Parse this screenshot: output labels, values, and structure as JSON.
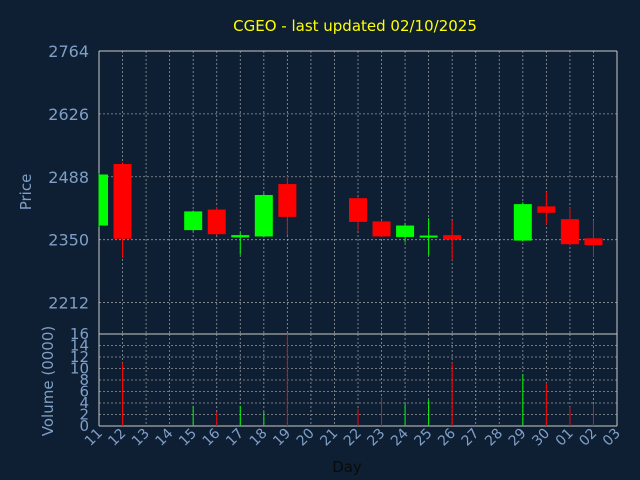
{
  "title": "CGEO - last updated 02/10/2025",
  "colors": {
    "background": "#0f1f33",
    "text": "#7f9fc7",
    "title": "#ffff00",
    "grid": "#c8c8c8",
    "up": "#00ff00",
    "down": "#ff0000"
  },
  "chart_data": [
    {
      "type": "candlestick",
      "ylabel": "Price",
      "ylim": [
        2143,
        2764
      ],
      "yticks": [
        2764,
        2626,
        2488,
        2350,
        2212
      ],
      "grid": true,
      "x": [
        "11",
        "12",
        "13",
        "14",
        "15",
        "16",
        "17",
        "18",
        "19",
        "20",
        "21",
        "22",
        "23",
        "24",
        "25",
        "26",
        "27",
        "28",
        "29",
        "30",
        "01",
        "02",
        "03"
      ],
      "candles": [
        {
          "day": "11",
          "open": 2381,
          "close": 2493,
          "high": 2496,
          "low": 2378
        },
        {
          "day": "12",
          "open": 2516,
          "close": 2352,
          "high": 2520,
          "low": 2310
        },
        {
          "day": "15",
          "open": 2371,
          "close": 2412,
          "high": 2414,
          "low": 2368
        },
        {
          "day": "16",
          "open": 2416,
          "close": 2362,
          "high": 2422,
          "low": 2360
        },
        {
          "day": "17",
          "open": 2355,
          "close": 2360,
          "high": 2366,
          "low": 2317
        },
        {
          "day": "18",
          "open": 2357,
          "close": 2448,
          "high": 2452,
          "low": 2355
        },
        {
          "day": "19",
          "open": 2472,
          "close": 2400,
          "high": 2490,
          "low": 2360
        },
        {
          "day": "22",
          "open": 2441,
          "close": 2389,
          "high": 2443,
          "low": 2370
        },
        {
          "day": "23",
          "open": 2390,
          "close": 2357,
          "high": 2392,
          "low": 2356
        },
        {
          "day": "24",
          "open": 2356,
          "close": 2381,
          "high": 2387,
          "low": 2344
        },
        {
          "day": "25",
          "open": 2356,
          "close": 2359,
          "high": 2397,
          "low": 2316
        },
        {
          "day": "26",
          "open": 2360,
          "close": 2350,
          "high": 2392,
          "low": 2305
        },
        {
          "day": "29",
          "open": 2348,
          "close": 2428,
          "high": 2432,
          "low": 2346
        },
        {
          "day": "30",
          "open": 2423,
          "close": 2409,
          "high": 2455,
          "low": 2383
        },
        {
          "day": "01",
          "open": 2395,
          "close": 2340,
          "high": 2421,
          "low": 2337
        },
        {
          "day": "02",
          "open": 2353,
          "close": 2338,
          "high": 2393,
          "low": 2312
        }
      ]
    },
    {
      "type": "bar",
      "xlabel": "Day",
      "ylabel": "Volume (0000)",
      "ylim": [
        0,
        16
      ],
      "yticks": [
        16,
        14,
        12,
        10,
        8,
        6,
        4,
        2,
        0
      ],
      "grid": true,
      "x": [
        "11",
        "12",
        "13",
        "14",
        "15",
        "16",
        "17",
        "18",
        "19",
        "20",
        "21",
        "22",
        "23",
        "24",
        "25",
        "26",
        "27",
        "28",
        "29",
        "30",
        "01",
        "02",
        "03"
      ],
      "bars": [
        {
          "day": "11",
          "value": 0,
          "color": "up"
        },
        {
          "day": "12",
          "value": 11,
          "color": "down"
        },
        {
          "day": "15",
          "value": 3.5,
          "color": "up"
        },
        {
          "day": "16",
          "value": 2.4,
          "color": "down"
        },
        {
          "day": "17",
          "value": 3.5,
          "color": "up"
        },
        {
          "day": "18",
          "value": 2.5,
          "color": "up"
        },
        {
          "day": "19",
          "value": 16,
          "color": "down"
        },
        {
          "day": "22",
          "value": 3,
          "color": "down"
        },
        {
          "day": "23",
          "value": 5,
          "color": "down"
        },
        {
          "day": "24",
          "value": 3.8,
          "color": "up"
        },
        {
          "day": "25",
          "value": 4.5,
          "color": "up"
        },
        {
          "day": "26",
          "value": 11,
          "color": "down"
        },
        {
          "day": "29",
          "value": 9,
          "color": "up"
        },
        {
          "day": "30",
          "value": 7.5,
          "color": "down"
        },
        {
          "day": "01",
          "value": 3.3,
          "color": "down"
        },
        {
          "day": "02",
          "value": 3.8,
          "color": "down"
        }
      ]
    }
  ]
}
